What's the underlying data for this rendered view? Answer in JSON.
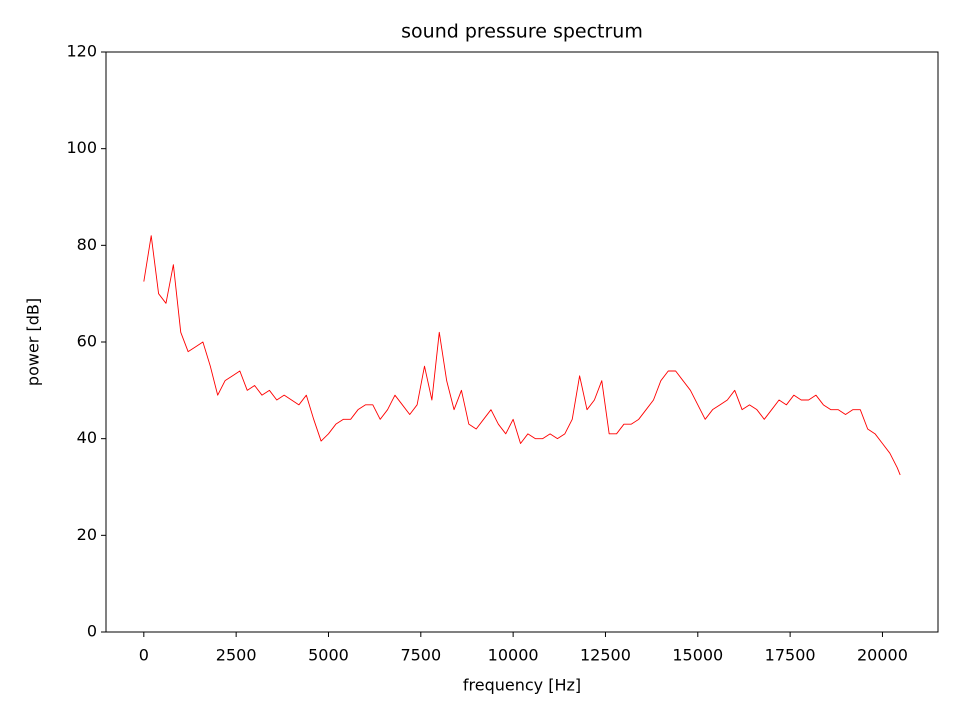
{
  "chart_data": {
    "type": "line",
    "title": "sound pressure spectrum",
    "x_label": "frequency [Hz]",
    "y_label": "power [dB]",
    "x": [
      0,
      200,
      400,
      600,
      800,
      1000,
      1200,
      1400,
      1600,
      1800,
      2000,
      2200,
      2400,
      2600,
      2800,
      3000,
      3200,
      3400,
      3600,
      3800,
      4000,
      4200,
      4400,
      4600,
      4800,
      5000,
      5200,
      5400,
      5600,
      5800,
      6000,
      6200,
      6400,
      6600,
      6800,
      7000,
      7200,
      7400,
      7600,
      7800,
      8000,
      8200,
      8400,
      8600,
      8800,
      9000,
      9200,
      9400,
      9600,
      9800,
      10000,
      10200,
      10400,
      10600,
      10800,
      11000,
      11200,
      11400,
      11600,
      11800,
      12000,
      12200,
      12400,
      12600,
      12800,
      13000,
      13200,
      13400,
      13600,
      13800,
      14000,
      14200,
      14400,
      14600,
      14800,
      15000,
      15200,
      15400,
      15600,
      15800,
      16000,
      16200,
      16400,
      16600,
      16800,
      17000,
      17200,
      17400,
      17600,
      17800,
      18000,
      18200,
      18400,
      18600,
      18800,
      19000,
      19200,
      19400,
      19600,
      19800,
      20000,
      20200,
      20400,
      20480
    ],
    "series": [
      {
        "name": "power",
        "color": "#ff0000",
        "values": [
          72.5,
          82,
          70,
          68,
          76,
          62,
          58,
          59,
          60,
          55,
          49,
          52,
          53,
          54,
          50,
          51,
          49,
          50,
          48,
          49,
          48,
          47,
          49,
          44,
          39.5,
          41,
          43,
          44,
          44,
          46,
          47,
          47,
          44,
          46,
          49,
          47,
          45,
          47,
          55,
          48,
          62,
          52,
          46,
          50,
          43,
          42,
          44,
          46,
          43,
          41,
          44,
          39,
          41,
          40,
          40,
          41,
          40,
          41,
          44,
          53,
          46,
          48,
          52,
          41,
          41,
          43,
          43,
          44,
          46,
          48,
          52,
          54,
          54,
          52,
          50,
          47,
          44,
          46,
          47,
          48,
          50,
          46,
          47,
          46,
          44,
          46,
          48,
          47,
          49,
          48,
          48,
          49,
          47,
          46,
          46,
          45,
          46,
          46,
          42,
          41,
          39,
          37,
          34,
          32.5
        ]
      }
    ],
    "xlim": [
      -1024,
      21504
    ],
    "xticks": [
      0,
      2500,
      5000,
      7500,
      10000,
      12500,
      15000,
      17500,
      20000
    ],
    "ylim": [
      0,
      120
    ],
    "yticks": [
      0,
      20,
      40,
      60,
      80,
      100,
      120
    ],
    "grid": false
  }
}
